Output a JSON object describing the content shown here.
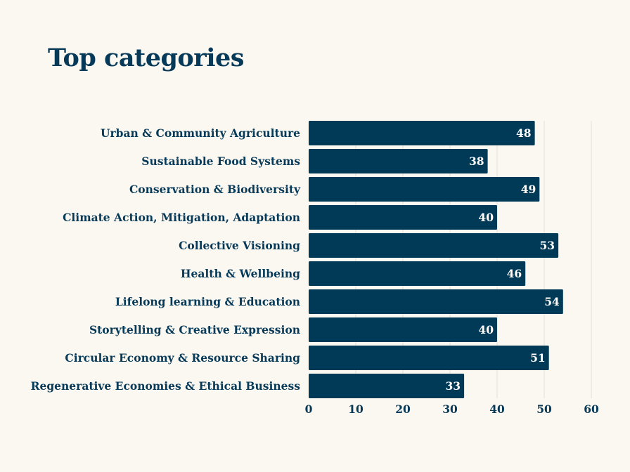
{
  "colors": {
    "background": "#fbf8f1",
    "bar": "#003a57",
    "text": "#073a58",
    "value_text": "#ffffff",
    "grid": "#e3e1d8"
  },
  "chart_data": {
    "type": "bar",
    "orientation": "horizontal",
    "title": "Top categories",
    "xlabel": "",
    "ylabel": "",
    "categories": [
      "Urban & Community Agriculture",
      "Sustainable Food Systems",
      "Conservation & Biodiversity",
      "Climate Action, Mitigation, Adaptation",
      "Collective Visioning",
      "Health & Wellbeing",
      "Lifelong learning & Education",
      "Storytelling & Creative Expression",
      "Circular Economy & Resource Sharing",
      "Regenerative Economies & Ethical Business"
    ],
    "values": [
      48,
      38,
      49,
      40,
      53,
      46,
      54,
      40,
      51,
      33
    ],
    "xlim": [
      0,
      60
    ],
    "x_ticks": [
      "0",
      "10",
      "20",
      "30",
      "40",
      "50",
      "60"
    ],
    "grid": true,
    "legend": "none",
    "data_labels": true
  }
}
